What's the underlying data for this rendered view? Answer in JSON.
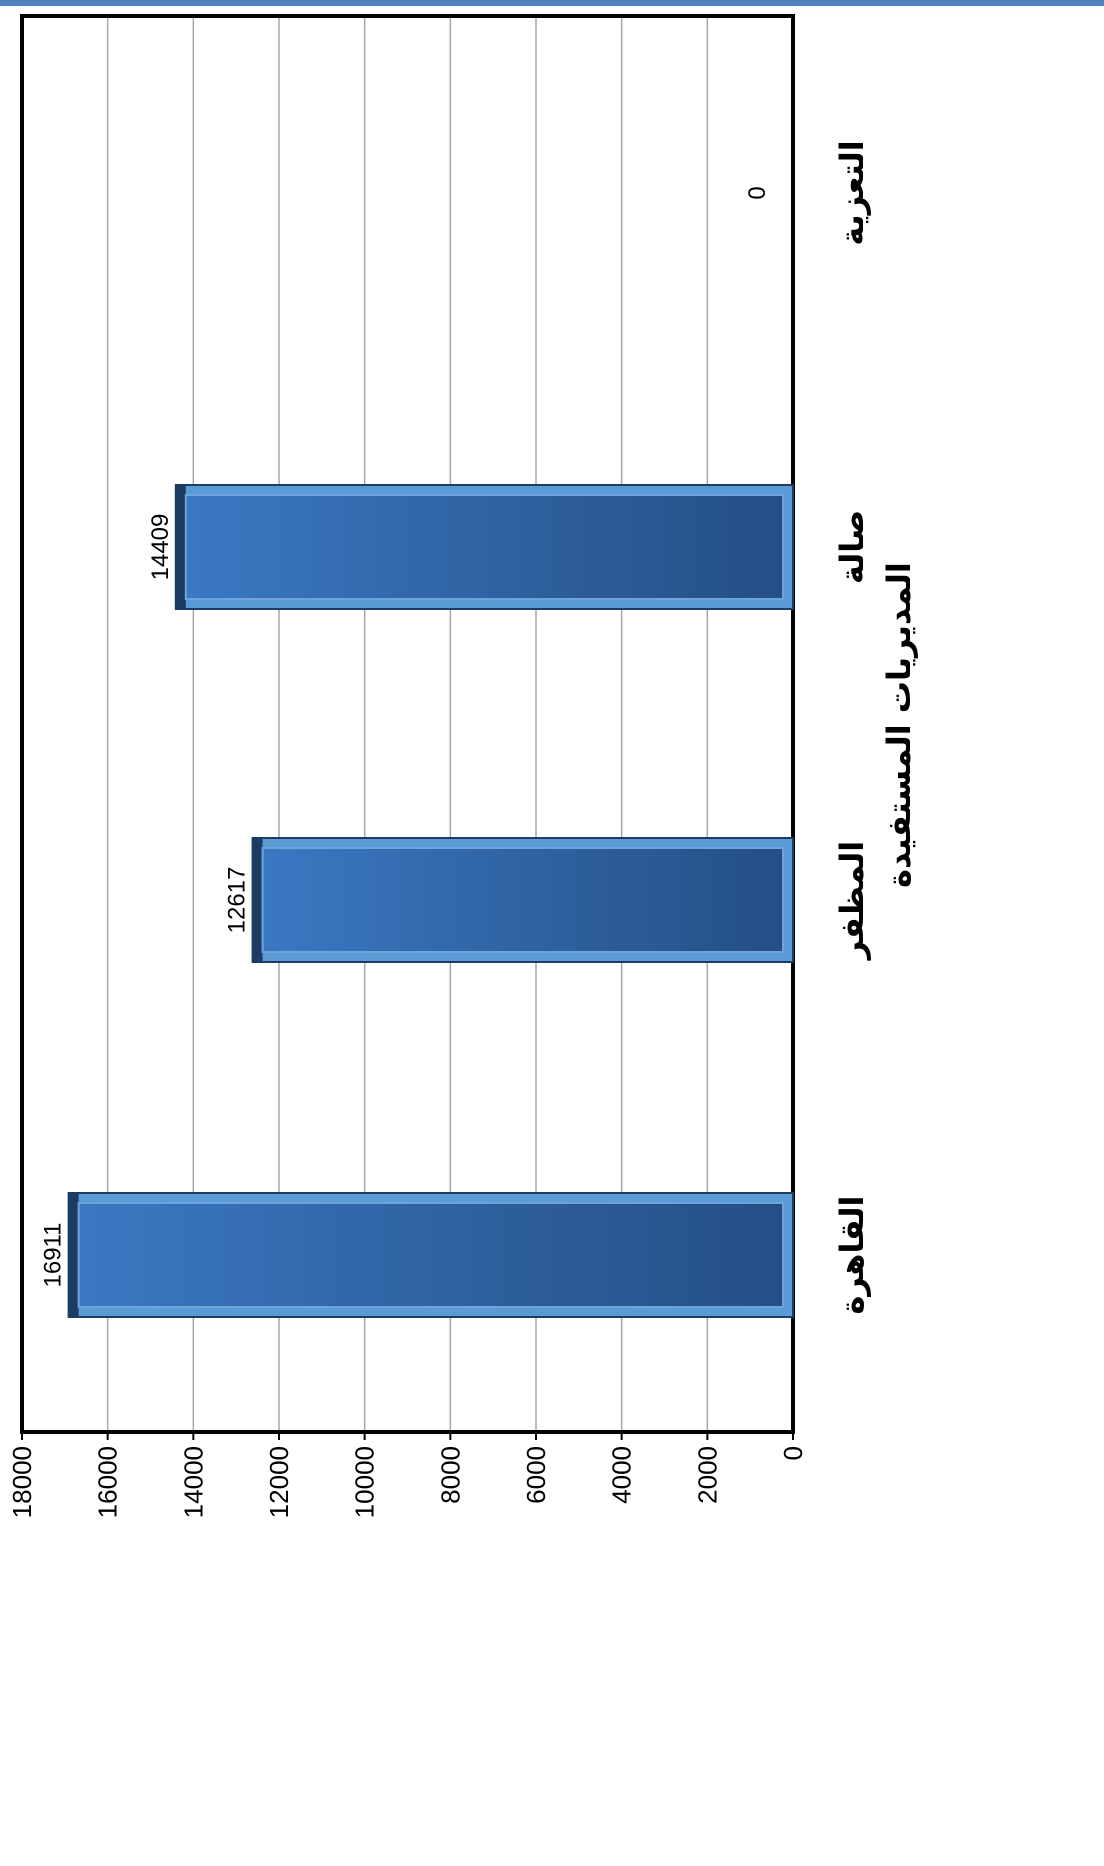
{
  "chart_data": {
    "type": "bar",
    "orientation": "rotated-90",
    "categories": [
      "القاهرة",
      "المظفر",
      "صالة",
      "التعزية"
    ],
    "values": [
      16911,
      12617,
      14409,
      0
    ],
    "data_labels": [
      "16911",
      "12617",
      "14409",
      "0"
    ],
    "xlabel": "المديريات المستفيدة",
    "ylabel": "",
    "ylim": [
      0,
      18000
    ],
    "yticks": [
      0,
      2000,
      4000,
      6000,
      8000,
      10000,
      12000,
      14000,
      16000,
      18000
    ],
    "grid": true,
    "legend": "none"
  },
  "colors": {
    "bar": "#2e5f9b",
    "bar_light": "#3d7bc6",
    "bar_dark": "#1d3c64",
    "bar_edge": "#5b9bd5",
    "gridline": "#a6a6a6",
    "top_rule": "#4f81bd"
  }
}
